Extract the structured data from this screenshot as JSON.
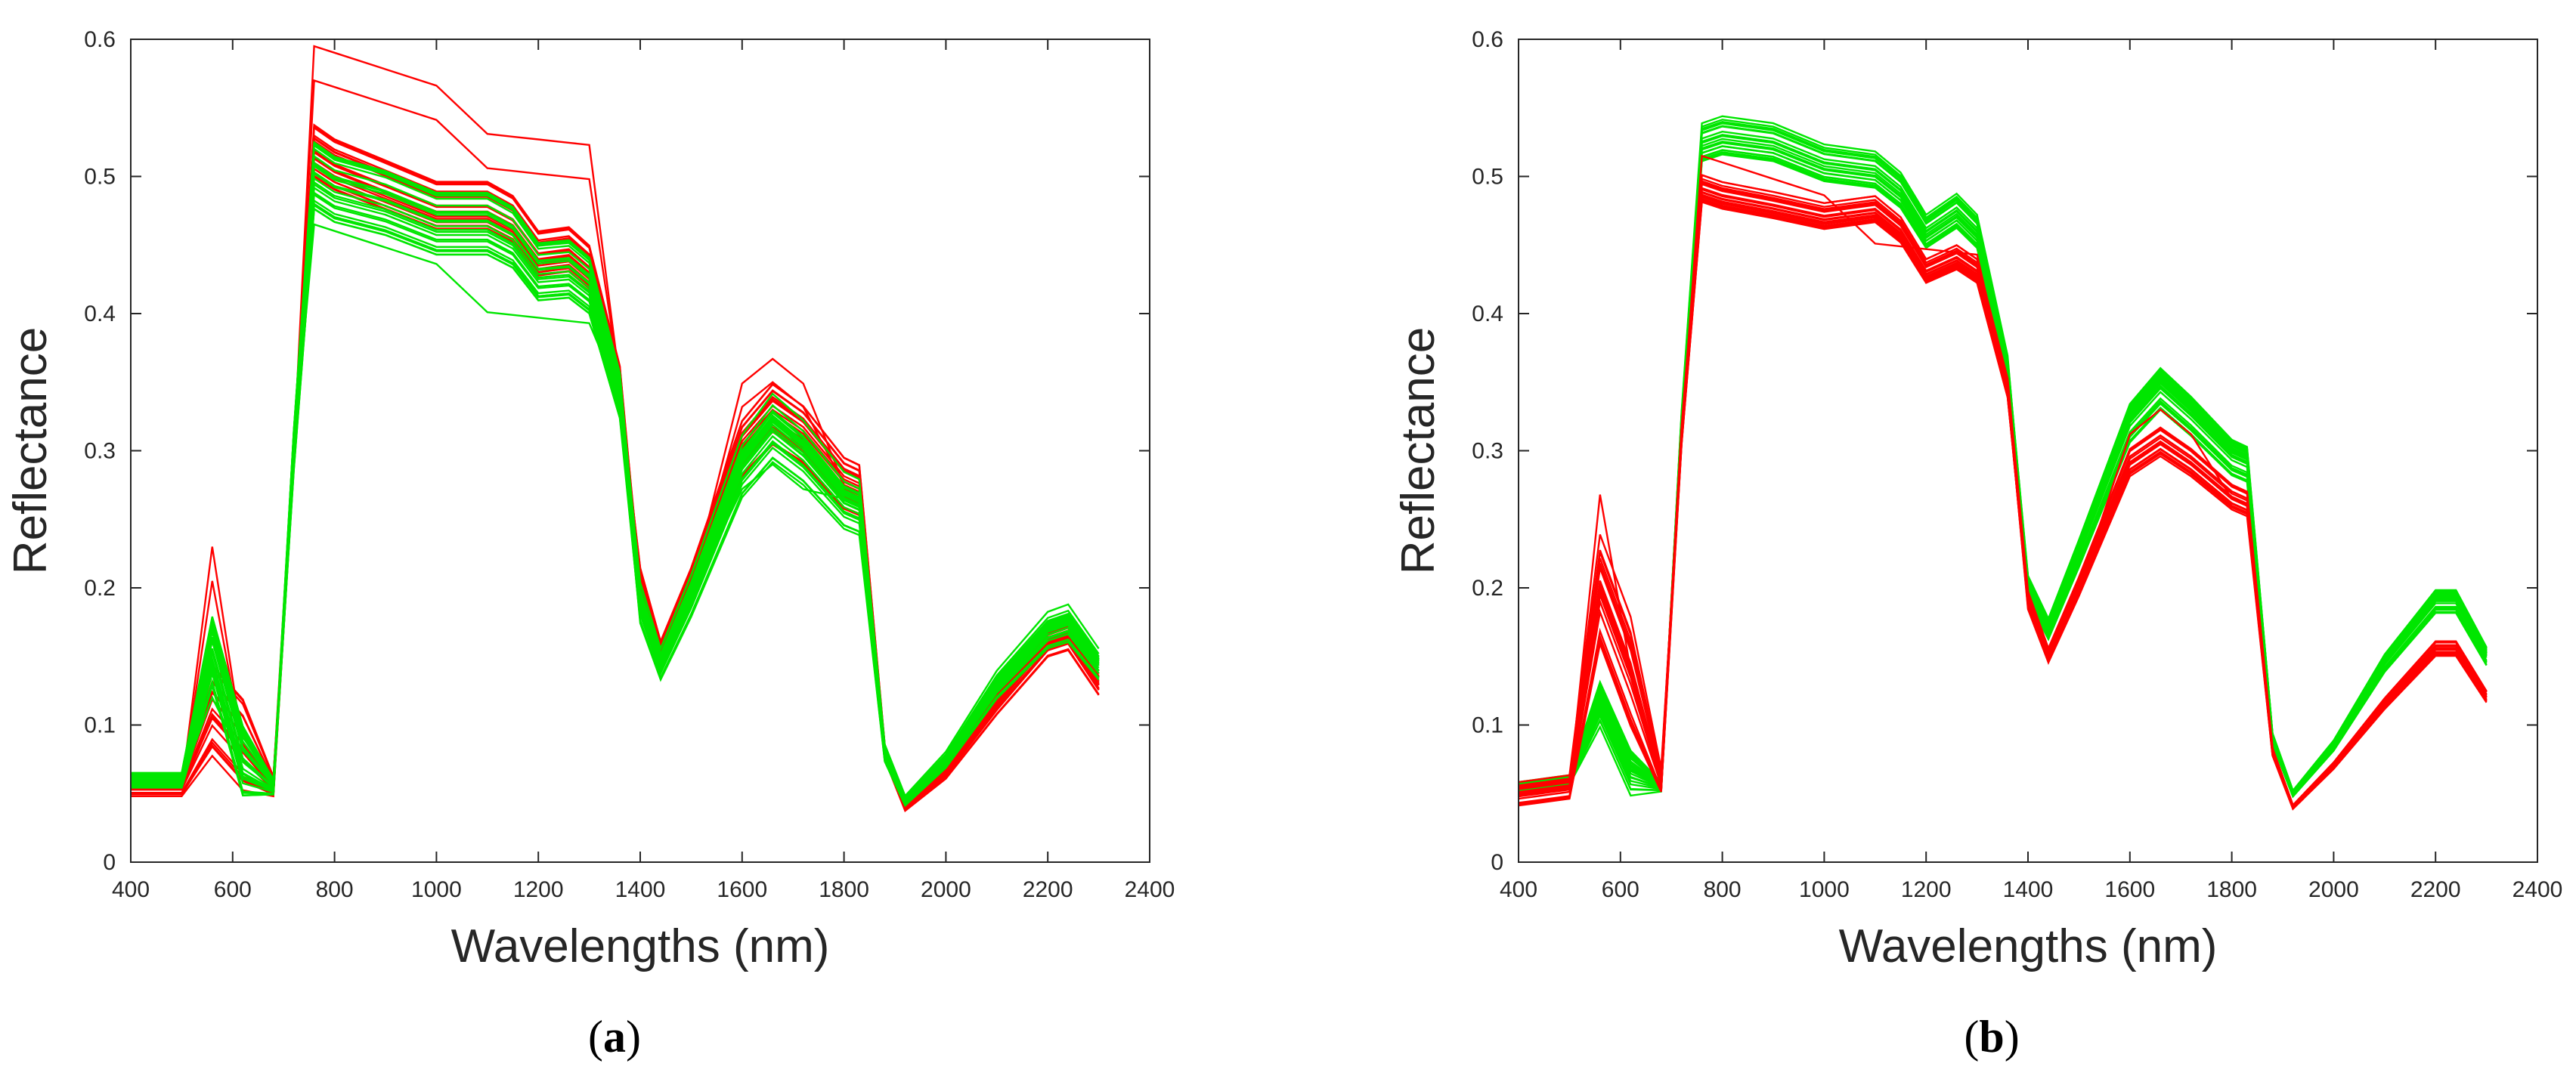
{
  "figure": {
    "colors": {
      "group_red": "#ff0000",
      "group_green": "#00e600",
      "axis": "#262626",
      "background": "#ffffff"
    },
    "panels": [
      {
        "caption_open": "(",
        "caption_letter": "a",
        "caption_close": ")"
      },
      {
        "caption_open": "(",
        "caption_letter": "b",
        "caption_close": ")"
      }
    ]
  },
  "chart_data": [
    {
      "type": "line",
      "panel": "a",
      "title": "",
      "xlabel": "Wavelengths (nm)",
      "ylabel": "Reflectance",
      "xlim": [
        400,
        2400
      ],
      "ylim": [
        0,
        0.6
      ],
      "xticks": [
        400,
        600,
        800,
        1000,
        1200,
        1400,
        1600,
        1800,
        2000,
        2200,
        2400
      ],
      "yticks": [
        0,
        0.1,
        0.2,
        0.3,
        0.4,
        0.5,
        0.6
      ],
      "ytick_labels": [
        "0",
        "0.1",
        "0.2",
        "0.3",
        "0.4",
        "0.5",
        "0.6"
      ],
      "x": [
        400,
        500,
        560,
        620,
        680,
        720,
        760,
        800,
        900,
        1000,
        1100,
        1150,
        1200,
        1260,
        1300,
        1360,
        1400,
        1440,
        1500,
        1600,
        1660,
        1720,
        1800,
        1830,
        1880,
        1920,
        2000,
        2100,
        2200,
        2240,
        2300
      ],
      "series": [
        {
          "name": "red spectra",
          "color": "#ff0000",
          "count": 20,
          "spread_vis": 0.025,
          "spread_nir": 0.022,
          "outliers": [
            {
              "vis_peak": 0.23,
              "nir_level": 0.595,
              "swir_peak": 0.367
            },
            {
              "vis_peak": 0.205,
              "nir_level": 0.57,
              "swir_peak": 0.35
            }
          ],
          "mean": [
            0.055,
            0.055,
            0.11,
            0.085,
            0.055,
            0.3,
            0.52,
            0.51,
            0.495,
            0.48,
            0.48,
            0.47,
            0.445,
            0.448,
            0.435,
            0.35,
            0.2,
            0.15,
            0.2,
            0.3,
            0.325,
            0.31,
            0.275,
            0.27,
            0.08,
            0.04,
            0.065,
            0.115,
            0.16,
            0.165,
            0.13
          ]
        },
        {
          "name": "green spectra",
          "color": "#00e600",
          "count": 24,
          "spread_vis": 0.02,
          "spread_nir": 0.025,
          "outliers": [
            {
              "vis_peak": 0.12,
              "nir_level": 0.465,
              "swir_peak": 0.29
            }
          ],
          "mean": [
            0.06,
            0.06,
            0.155,
            0.075,
            0.055,
            0.3,
            0.5,
            0.49,
            0.48,
            0.465,
            0.465,
            0.455,
            0.43,
            0.432,
            0.42,
            0.34,
            0.19,
            0.145,
            0.195,
            0.29,
            0.318,
            0.3,
            0.265,
            0.26,
            0.08,
            0.045,
            0.075,
            0.13,
            0.17,
            0.175,
            0.145
          ]
        }
      ]
    },
    {
      "type": "line",
      "panel": "b",
      "title": "",
      "xlabel": "Wavelengths (nm)",
      "ylabel": "Reflectance",
      "xlim": [
        400,
        2400
      ],
      "ylim": [
        0,
        0.6
      ],
      "xticks": [
        400,
        600,
        800,
        1000,
        1200,
        1400,
        1600,
        1800,
        2000,
        2200,
        2400
      ],
      "yticks": [
        0,
        0.1,
        0.2,
        0.3,
        0.4,
        0.5,
        0.6
      ],
      "ytick_labels": [
        "0",
        "0.1",
        "0.2",
        "0.3",
        "0.4",
        "0.5",
        "0.6"
      ],
      "x": [
        400,
        500,
        560,
        620,
        680,
        720,
        760,
        800,
        900,
        1000,
        1100,
        1150,
        1200,
        1260,
        1300,
        1360,
        1400,
        1440,
        1500,
        1600,
        1660,
        1720,
        1800,
        1830,
        1880,
        1920,
        2000,
        2100,
        2200,
        2240,
        2300
      ],
      "series": [
        {
          "name": "green spectra",
          "color": "#00e600",
          "count": 24,
          "spread_vis": 0.012,
          "spread_nir": 0.014,
          "outliers": [],
          "mean": [
            0.055,
            0.06,
            0.115,
            0.065,
            0.055,
            0.32,
            0.525,
            0.53,
            0.525,
            0.51,
            0.505,
            0.49,
            0.46,
            0.475,
            0.46,
            0.36,
            0.2,
            0.17,
            0.225,
            0.32,
            0.345,
            0.325,
            0.295,
            0.29,
            0.09,
            0.05,
            0.085,
            0.145,
            0.19,
            0.19,
            0.15
          ]
        },
        {
          "name": "red spectra",
          "color": "#ff0000",
          "count": 20,
          "spread_vis": 0.03,
          "spread_nir": 0.012,
          "outliers": [
            {
              "vis_peak": 0.268,
              "nir_level": 0.515,
              "swir_peak": 0.33
            }
          ],
          "mean": [
            0.05,
            0.055,
            0.2,
            0.14,
            0.06,
            0.31,
            0.49,
            0.485,
            0.478,
            0.47,
            0.475,
            0.46,
            0.43,
            0.44,
            0.43,
            0.345,
            0.19,
            0.15,
            0.2,
            0.29,
            0.305,
            0.29,
            0.265,
            0.26,
            0.08,
            0.04,
            0.07,
            0.115,
            0.155,
            0.155,
            0.12
          ]
        }
      ]
    }
  ]
}
